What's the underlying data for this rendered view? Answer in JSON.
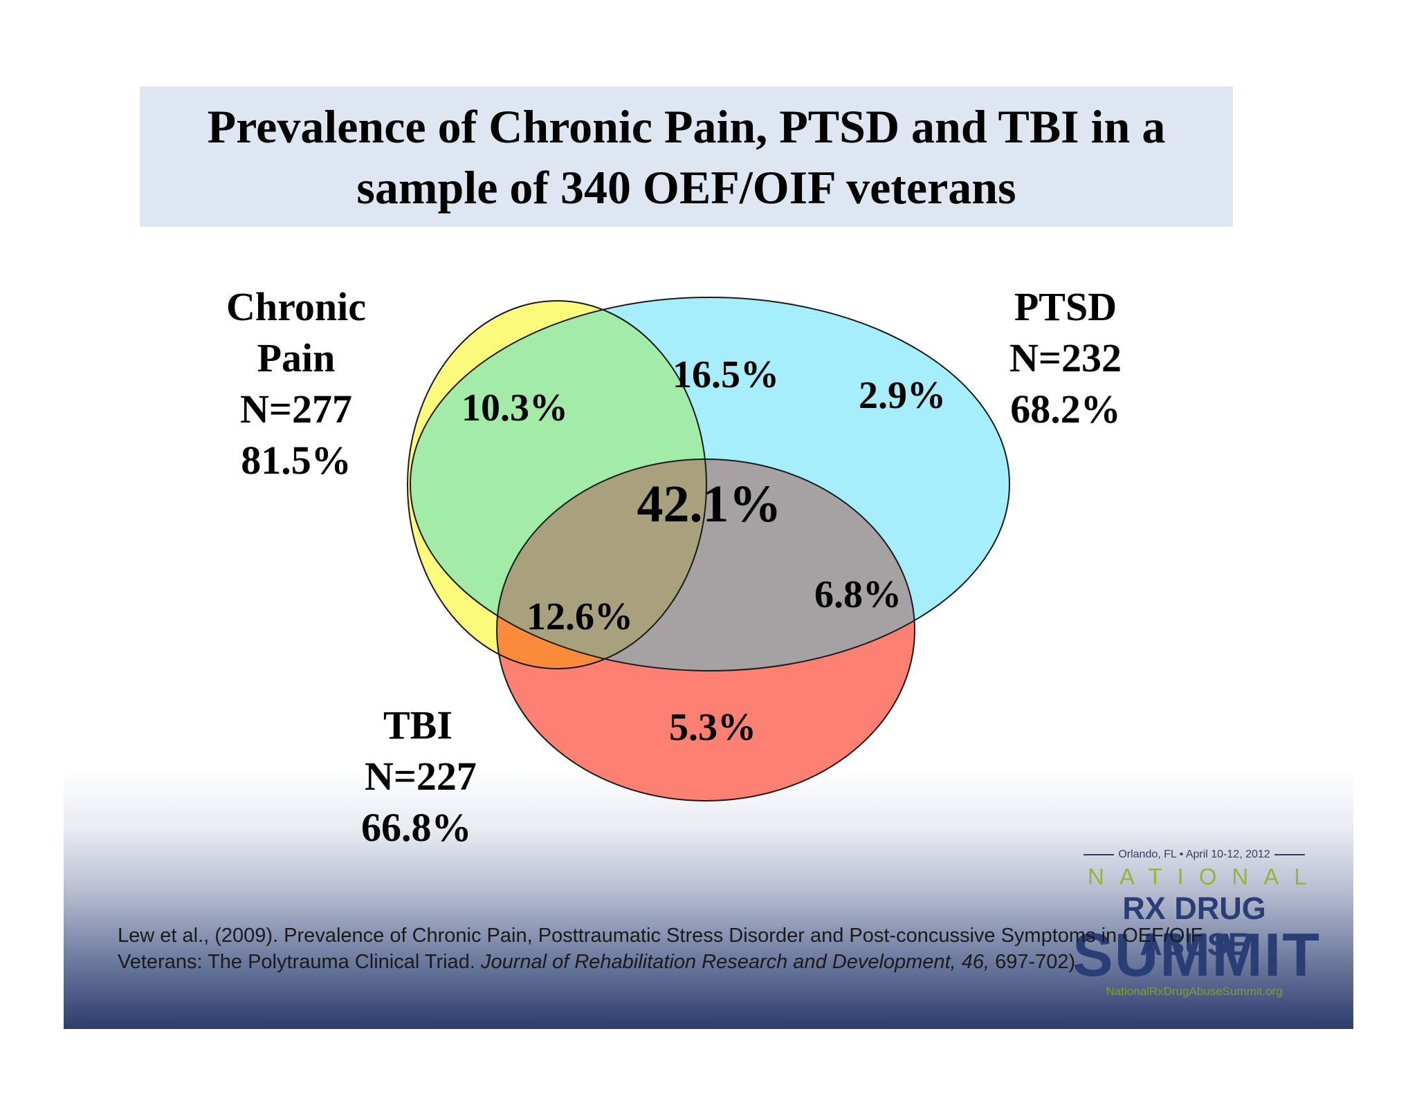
{
  "title": {
    "line1": "Prevalence of Chronic Pain, PTSD and TBI in a",
    "line2": "sample of 340 OEF/OIF veterans"
  },
  "sets": {
    "chronic_pain": {
      "name_line1": "Chronic",
      "name_line2": "Pain",
      "n": "N=277",
      "pct": "81.5%",
      "color": "#fbfa7a"
    },
    "ptsd": {
      "name": "PTSD",
      "n": "N=232",
      "pct": "68.2%",
      "color": "#a6eefb"
    },
    "tbi": {
      "name": "TBI",
      "n": "N=227",
      "pct": "66.8%",
      "color": "#fd8072"
    }
  },
  "regions": {
    "pain_only": "10.3%",
    "pain_ptsd": "16.5%",
    "ptsd_only": "2.9%",
    "all_three": "42.1%",
    "pain_tbi": "12.6%",
    "ptsd_tbi": "6.8%",
    "tbi_only": "5.3%"
  },
  "region_colors": {
    "pain_ptsd": "#a3eba8",
    "pain_tbi": "#fb8a3a",
    "ptsd_tbi": "#a6a2a3",
    "all_three": "#a9a17e"
  },
  "citation": {
    "line1": "Lew et al., (2009). Prevalence of Chronic Pain, Posttraumatic Stress Disorder and Post-concussive Symptoms in OEF/OIF",
    "line2_plain": "Veterans: The Polytrauma Clinical Triad. ",
    "line2_italic": "Journal of Rehabilitation Research and Development, 46,",
    "line2_end": " 697-702)"
  },
  "logo": {
    "date": "Orlando, FL • April 10-12, 2012",
    "national": "NATIONAL",
    "rx": "RX DRUG ABUSE",
    "summit": "SUMMIT",
    "url": "NationalRxDrugAbuseSummit.org"
  }
}
